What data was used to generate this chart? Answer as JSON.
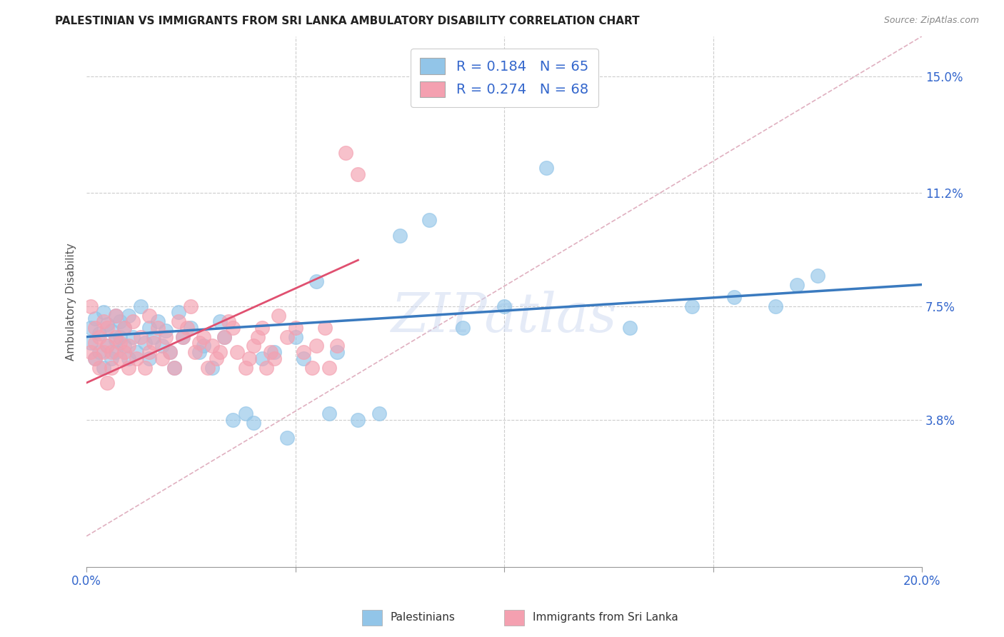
{
  "title": "PALESTINIAN VS IMMIGRANTS FROM SRI LANKA AMBULATORY DISABILITY CORRELATION CHART",
  "source": "Source: ZipAtlas.com",
  "ylabel": "Ambulatory Disability",
  "ytick_values": [
    0.038,
    0.075,
    0.112,
    0.15
  ],
  "ytick_labels": [
    "3.8%",
    "7.5%",
    "11.2%",
    "15.0%"
  ],
  "xmin": 0.0,
  "xmax": 0.2,
  "ymin": -0.01,
  "ymax": 0.163,
  "legend_label1": "Palestinians",
  "legend_label2": "Immigrants from Sri Lanka",
  "color_blue": "#92c5e8",
  "color_pink": "#f4a0b0",
  "trendline1_color": "#3a7abf",
  "trendline2_color": "#e05070",
  "diagonal_color": "#c8c8c8",
  "watermark": "ZIPatlas",
  "palestinians_x": [
    0.001,
    0.001,
    0.002,
    0.002,
    0.003,
    0.003,
    0.004,
    0.004,
    0.005,
    0.005,
    0.006,
    0.006,
    0.007,
    0.007,
    0.007,
    0.008,
    0.008,
    0.009,
    0.009,
    0.01,
    0.01,
    0.011,
    0.012,
    0.013,
    0.014,
    0.015,
    0.015,
    0.016,
    0.017,
    0.018,
    0.019,
    0.02,
    0.021,
    0.022,
    0.023,
    0.025,
    0.027,
    0.028,
    0.03,
    0.032,
    0.033,
    0.035,
    0.038,
    0.04,
    0.042,
    0.045,
    0.048,
    0.05,
    0.052,
    0.055,
    0.058,
    0.06,
    0.065,
    0.07,
    0.075,
    0.082,
    0.09,
    0.1,
    0.11,
    0.13,
    0.145,
    0.155,
    0.165,
    0.17,
    0.175
  ],
  "palestinians_y": [
    0.068,
    0.063,
    0.071,
    0.058,
    0.066,
    0.06,
    0.073,
    0.055,
    0.069,
    0.062,
    0.067,
    0.058,
    0.064,
    0.072,
    0.06,
    0.065,
    0.07,
    0.062,
    0.068,
    0.058,
    0.072,
    0.065,
    0.06,
    0.075,
    0.063,
    0.068,
    0.058,
    0.065,
    0.07,
    0.062,
    0.067,
    0.06,
    0.055,
    0.073,
    0.065,
    0.068,
    0.06,
    0.062,
    0.055,
    0.07,
    0.065,
    0.038,
    0.04,
    0.037,
    0.058,
    0.06,
    0.032,
    0.065,
    0.058,
    0.083,
    0.04,
    0.06,
    0.038,
    0.04,
    0.098,
    0.103,
    0.068,
    0.075,
    0.12,
    0.068,
    0.075,
    0.078,
    0.075,
    0.082,
    0.085
  ],
  "srilanka_x": [
    0.001,
    0.001,
    0.002,
    0.002,
    0.002,
    0.003,
    0.003,
    0.004,
    0.004,
    0.005,
    0.005,
    0.005,
    0.006,
    0.006,
    0.007,
    0.007,
    0.008,
    0.008,
    0.009,
    0.009,
    0.01,
    0.01,
    0.011,
    0.012,
    0.013,
    0.014,
    0.015,
    0.015,
    0.016,
    0.017,
    0.018,
    0.019,
    0.02,
    0.021,
    0.022,
    0.023,
    0.024,
    0.025,
    0.026,
    0.027,
    0.028,
    0.029,
    0.03,
    0.031,
    0.032,
    0.033,
    0.034,
    0.035,
    0.036,
    0.038,
    0.039,
    0.04,
    0.041,
    0.042,
    0.043,
    0.044,
    0.045,
    0.046,
    0.048,
    0.05,
    0.052,
    0.054,
    0.055,
    0.057,
    0.058,
    0.06,
    0.062,
    0.065
  ],
  "srilanka_y": [
    0.075,
    0.06,
    0.058,
    0.068,
    0.063,
    0.055,
    0.065,
    0.06,
    0.07,
    0.05,
    0.062,
    0.068,
    0.055,
    0.06,
    0.065,
    0.072,
    0.058,
    0.063,
    0.06,
    0.068,
    0.055,
    0.062,
    0.07,
    0.058,
    0.065,
    0.055,
    0.06,
    0.072,
    0.063,
    0.068,
    0.058,
    0.065,
    0.06,
    0.055,
    0.07,
    0.065,
    0.068,
    0.075,
    0.06,
    0.063,
    0.065,
    0.055,
    0.062,
    0.058,
    0.06,
    0.065,
    0.07,
    0.068,
    0.06,
    0.055,
    0.058,
    0.062,
    0.065,
    0.068,
    0.055,
    0.06,
    0.058,
    0.072,
    0.065,
    0.068,
    0.06,
    0.055,
    0.062,
    0.068,
    0.055,
    0.062,
    0.125,
    0.118
  ],
  "trendline1_x": [
    0.0,
    0.2
  ],
  "trendline1_y": [
    0.065,
    0.082
  ],
  "trendline2_x": [
    0.0,
    0.065
  ],
  "trendline2_y": [
    0.05,
    0.09
  ]
}
